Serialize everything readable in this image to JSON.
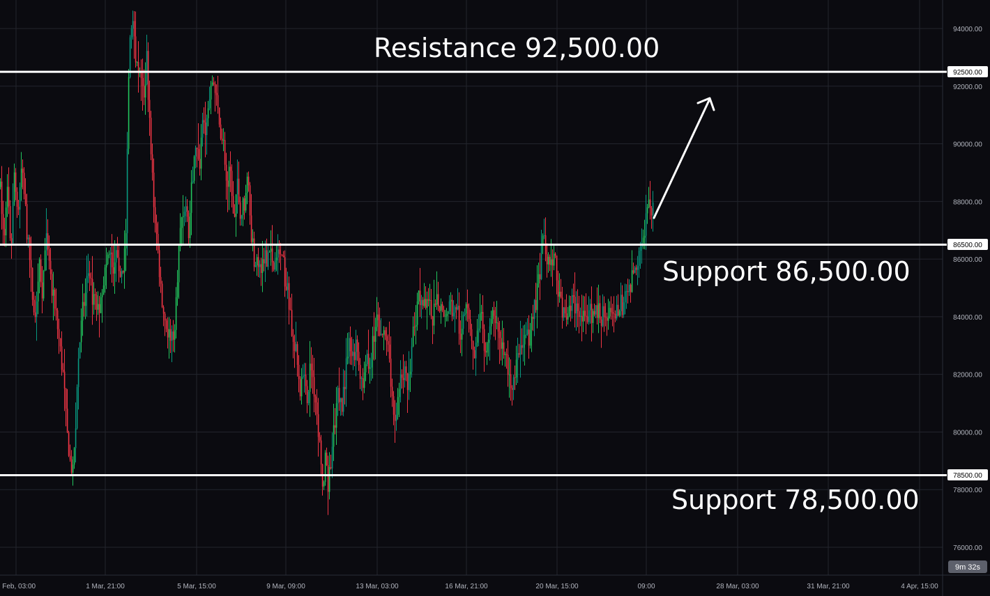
{
  "chart_data": {
    "type": "candlestick",
    "title": "",
    "xlabel": "",
    "ylabel": "",
    "ylim": [
      75000,
      95000
    ],
    "grid": true,
    "x_ticks": [
      "5 Feb, 03:00",
      "1 Mar, 21:00",
      "5 Mar, 15:00",
      "9 Mar, 09:00",
      "13 Mar, 03:00",
      "16 Mar, 21:00",
      "20 Mar, 15:00",
      "09:00",
      "28 Mar, 03:00",
      "31 Mar, 21:00",
      "4 Apr, 15:00"
    ],
    "y_ticks": [
      76000,
      78000,
      80000,
      82000,
      84000,
      86000,
      88000,
      90000,
      92000,
      94000
    ],
    "y_tick_labels": [
      "76000.00",
      "78000.00",
      "80000.00",
      "82000.00",
      "84000.00",
      "86000.00",
      "88000.00",
      "90000.00",
      "92000.00",
      "94000.00"
    ],
    "price_path": [
      [
        0,
        88500
      ],
      [
        5,
        86500
      ],
      [
        10,
        88500
      ],
      [
        15,
        86000
      ],
      [
        20,
        89000
      ],
      [
        25,
        87500
      ],
      [
        30,
        89000
      ],
      [
        35,
        88000
      ],
      [
        40,
        86500
      ],
      [
        45,
        85000
      ],
      [
        50,
        84000
      ],
      [
        55,
        86000
      ],
      [
        60,
        85000
      ],
      [
        65,
        86500
      ],
      [
        70,
        86000
      ],
      [
        75,
        84500
      ],
      [
        80,
        84000
      ],
      [
        85,
        83000
      ],
      [
        90,
        82000
      ],
      [
        95,
        80000
      ],
      [
        100,
        79000
      ],
      [
        104,
        78500
      ],
      [
        108,
        80500
      ],
      [
        112,
        82500
      ],
      [
        116,
        84000
      ],
      [
        120,
        84500
      ],
      [
        125,
        85200
      ],
      [
        130,
        85000
      ],
      [
        135,
        84500
      ],
      [
        140,
        84200
      ],
      [
        145,
        85000
      ],
      [
        150,
        85500
      ],
      [
        155,
        86200
      ],
      [
        160,
        85800
      ],
      [
        165,
        86000
      ],
      [
        170,
        85700
      ],
      [
        175,
        85500
      ],
      [
        180,
        87000
      ],
      [
        185,
        93500
      ],
      [
        190,
        94500
      ],
      [
        195,
        93000
      ],
      [
        200,
        92500
      ],
      [
        205,
        91500
      ],
      [
        210,
        93000
      ],
      [
        215,
        90000
      ],
      [
        220,
        88000
      ],
      [
        225,
        86500
      ],
      [
        230,
        85000
      ],
      [
        235,
        84000
      ],
      [
        240,
        83500
      ],
      [
        245,
        83000
      ],
      [
        250,
        83500
      ],
      [
        255,
        86000
      ],
      [
        260,
        87500
      ],
      [
        265,
        88000
      ],
      [
        270,
        87000
      ],
      [
        275,
        88500
      ],
      [
        280,
        90000
      ],
      [
        285,
        89000
      ],
      [
        290,
        91000
      ],
      [
        295,
        90500
      ],
      [
        300,
        91500
      ],
      [
        305,
        92300
      ],
      [
        310,
        91500
      ],
      [
        315,
        90500
      ],
      [
        320,
        90000
      ],
      [
        325,
        88500
      ],
      [
        330,
        89000
      ],
      [
        335,
        87000
      ],
      [
        340,
        88500
      ],
      [
        345,
        87500
      ],
      [
        350,
        88000
      ],
      [
        355,
        89000
      ],
      [
        360,
        87000
      ],
      [
        365,
        86000
      ],
      [
        370,
        85500
      ],
      [
        375,
        85800
      ],
      [
        380,
        86000
      ],
      [
        385,
        86300
      ],
      [
        390,
        86000
      ],
      [
        395,
        85900
      ],
      [
        400,
        86200
      ],
      [
        405,
        85800
      ],
      [
        410,
        85000
      ],
      [
        415,
        84500
      ],
      [
        420,
        83000
      ],
      [
        425,
        82500
      ],
      [
        430,
        81500
      ],
      [
        435,
        82000
      ],
      [
        440,
        81000
      ],
      [
        445,
        82500
      ],
      [
        450,
        81500
      ],
      [
        455,
        80500
      ],
      [
        460,
        79000
      ],
      [
        463,
        77500
      ],
      [
        466,
        79000
      ],
      [
        470,
        78000
      ],
      [
        475,
        79500
      ],
      [
        480,
        80000
      ],
      [
        485,
        81500
      ],
      [
        490,
        81000
      ],
      [
        495,
        82000
      ],
      [
        500,
        83000
      ],
      [
        505,
        82500
      ],
      [
        510,
        83000
      ],
      [
        515,
        82000
      ],
      [
        520,
        81500
      ],
      [
        525,
        83000
      ],
      [
        530,
        82000
      ],
      [
        535,
        83500
      ],
      [
        540,
        84000
      ],
      [
        545,
        83000
      ],
      [
        550,
        83500
      ],
      [
        555,
        83000
      ],
      [
        560,
        82000
      ],
      [
        565,
        80000
      ],
      [
        570,
        81000
      ],
      [
        575,
        82000
      ],
      [
        580,
        82500
      ],
      [
        585,
        81500
      ],
      [
        590,
        83000
      ],
      [
        595,
        84000
      ],
      [
        600,
        85000
      ],
      [
        605,
        84500
      ],
      [
        610,
        84200
      ],
      [
        615,
        84500
      ],
      [
        620,
        84000
      ],
      [
        625,
        84200
      ],
      [
        630,
        84500
      ],
      [
        635,
        84000
      ],
      [
        640,
        84300
      ],
      [
        645,
        84500
      ],
      [
        650,
        84200
      ],
      [
        655,
        84400
      ],
      [
        660,
        83000
      ],
      [
        665,
        84000
      ],
      [
        670,
        84500
      ],
      [
        675,
        83500
      ],
      [
        680,
        82500
      ],
      [
        685,
        83500
      ],
      [
        690,
        83800
      ],
      [
        695,
        83000
      ],
      [
        700,
        83500
      ],
      [
        705,
        84200
      ],
      [
        710,
        84000
      ],
      [
        715,
        83500
      ],
      [
        720,
        83000
      ],
      [
        725,
        82500
      ],
      [
        730,
        82000
      ],
      [
        735,
        81500
      ],
      [
        740,
        82200
      ],
      [
        745,
        82500
      ],
      [
        750,
        83000
      ],
      [
        755,
        83500
      ],
      [
        760,
        83500
      ],
      [
        765,
        84000
      ],
      [
        770,
        85000
      ],
      [
        775,
        86000
      ],
      [
        780,
        86700
      ],
      [
        785,
        86000
      ],
      [
        790,
        85800
      ],
      [
        795,
        86000
      ],
      [
        800,
        85000
      ],
      [
        805,
        84000
      ],
      [
        810,
        84200
      ],
      [
        815,
        84000
      ],
      [
        820,
        84500
      ],
      [
        825,
        84000
      ],
      [
        830,
        84200
      ],
      [
        835,
        84000
      ],
      [
        840,
        83800
      ],
      [
        845,
        84200
      ],
      [
        850,
        84000
      ],
      [
        855,
        84300
      ],
      [
        860,
        84000
      ],
      [
        865,
        84200
      ],
      [
        870,
        84000
      ],
      [
        875,
        83900
      ],
      [
        880,
        84000
      ],
      [
        885,
        84200
      ],
      [
        890,
        84300
      ],
      [
        895,
        84500
      ],
      [
        900,
        84800
      ],
      [
        905,
        85200
      ],
      [
        910,
        85500
      ],
      [
        915,
        86000
      ],
      [
        920,
        86500
      ],
      [
        925,
        87200
      ],
      [
        930,
        87700
      ],
      [
        936,
        87500
      ]
    ],
    "levels": [
      {
        "name": "Resistance",
        "value": 92500
      },
      {
        "name": "Support",
        "value": 86500
      },
      {
        "name": "Support",
        "value": 78500
      }
    ]
  },
  "price_labels": [
    "92500.00",
    "86500.00",
    "78500.00"
  ],
  "annotations": {
    "resistance": "Resistance 92,500.00",
    "support_mid": "Support 86,500.00",
    "support_low": "Support 78,500.00"
  },
  "timer": "9m 32s",
  "colors": {
    "background": "#0b0b10",
    "grid": "#23252d",
    "up": "#089981",
    "up_bright": "#22c55e",
    "down": "#f23645",
    "level_line": "#ffffff"
  }
}
